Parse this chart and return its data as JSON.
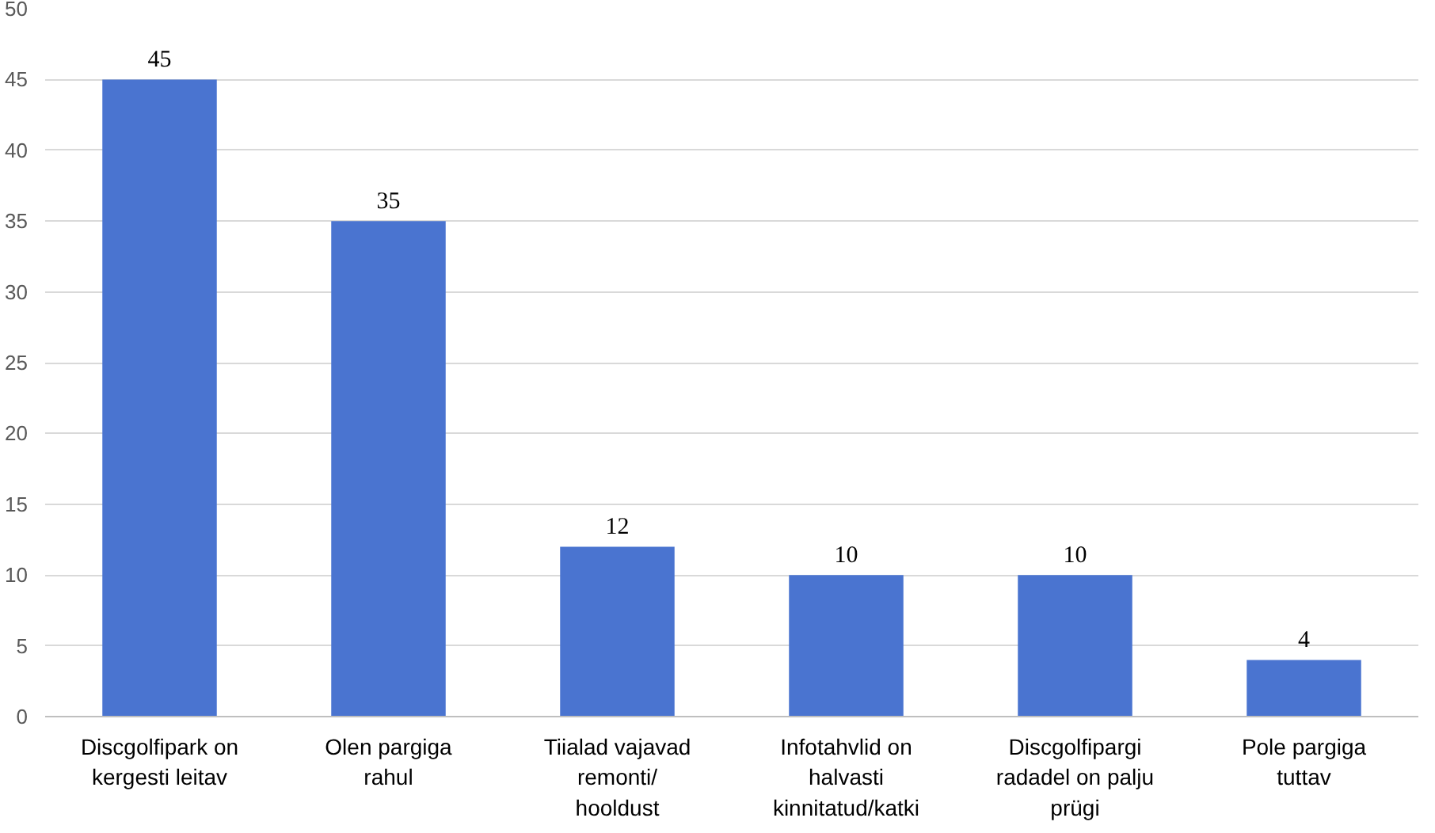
{
  "chart_data": {
    "type": "bar",
    "categories": [
      "Discgolfipark on kergesti leitav",
      "Olen pargiga rahul",
      "Tiialad vajavad remonti/ hooldust",
      "Infotahvlid on halvasti kinnitatud/katki",
      "Discgolfipargi radadel on palju prügi",
      "Pole pargiga tuttav"
    ],
    "values": [
      45,
      35,
      12,
      10,
      10,
      4
    ],
    "color": "#4a74d0",
    "ylim": [
      0,
      50
    ],
    "yticks": [
      0,
      5,
      10,
      15,
      20,
      25,
      30,
      35,
      40,
      45,
      50
    ],
    "grid": "y",
    "data_labels": true
  }
}
